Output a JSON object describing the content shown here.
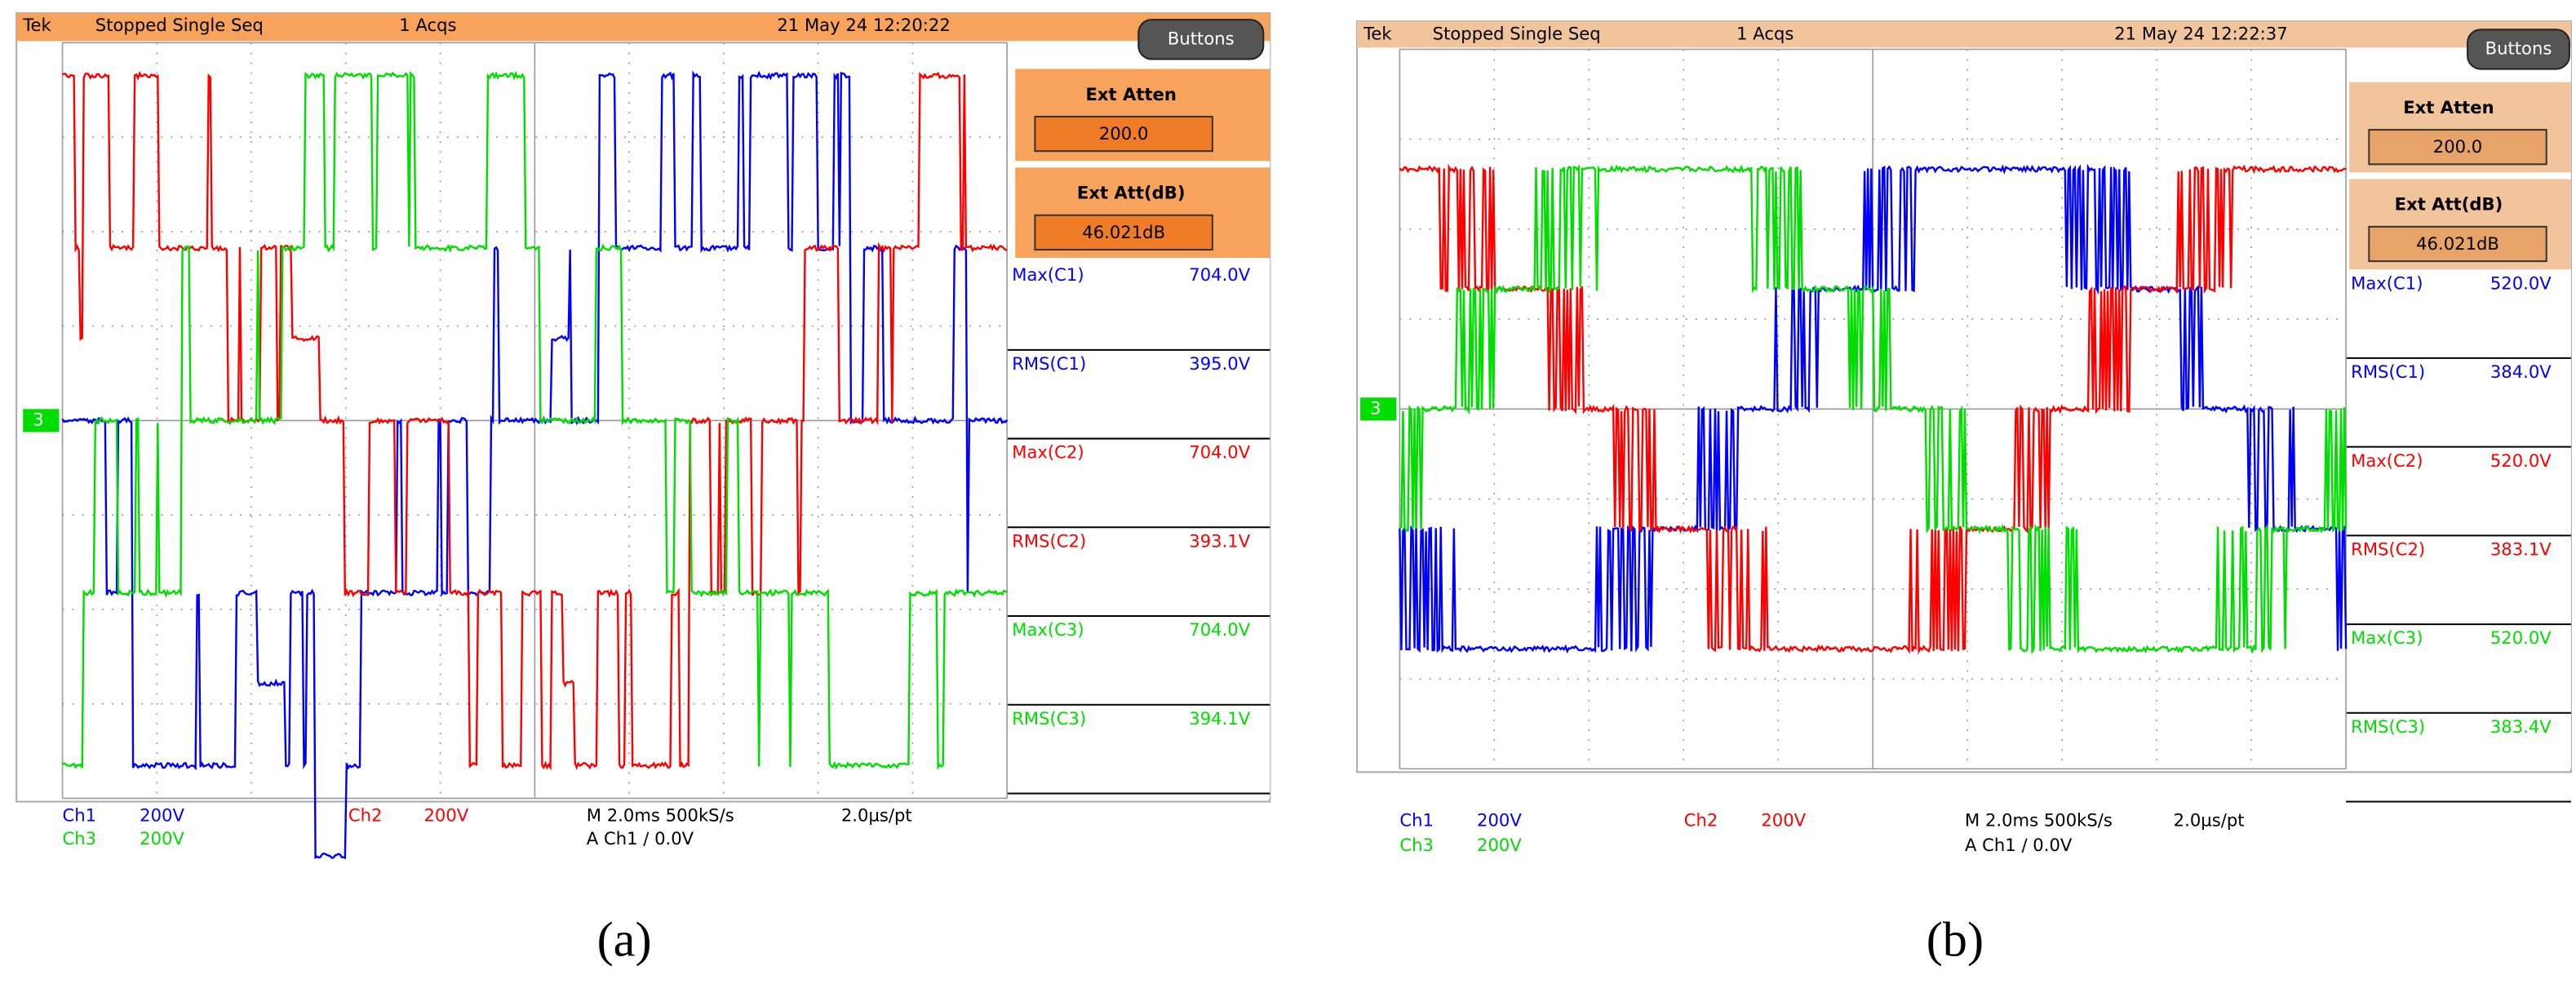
{
  "panels": [
    {
      "caption": "(a)",
      "header": {
        "brand": "Tek",
        "status": "Stopped  Single Seq",
        "acqs": "1 Acqs",
        "datetime": "21 May 24 12:20:22",
        "button": "Buttons"
      },
      "ext_atten": {
        "label": "Ext Atten",
        "value": "200.0"
      },
      "ext_att_db": {
        "label": "Ext Att(dB)",
        "value": "46.021dB"
      },
      "marker": "3",
      "measurements": [
        {
          "label": "Max(C1)",
          "value": "704.0V"
        },
        {
          "label": "RMS(C1)",
          "value": "395.0V"
        },
        {
          "label": "Max(C2)",
          "value": "704.0V"
        },
        {
          "label": "RMS(C2)",
          "value": "393.1V"
        },
        {
          "label": "Max(C3)",
          "value": "704.0V"
        },
        {
          "label": "RMS(C3)",
          "value": "394.1V"
        }
      ],
      "footer": {
        "ch1": "Ch1",
        "ch1_scale": "200V",
        "ch2": "Ch2",
        "ch2_scale": "200V",
        "ch3": "Ch3",
        "ch3_scale": "200V",
        "timebase": "M 2.0ms 500kS/s",
        "per_pt": "2.0µs/pt",
        "trigger": "A  Ch1  ∕  0.0V"
      }
    },
    {
      "caption": "(b)",
      "header": {
        "brand": "Tek",
        "status": "Stopped  Single Seq",
        "acqs": "1 Acqs",
        "datetime": "21 May 24 12:22:37",
        "button": "Buttons"
      },
      "ext_atten": {
        "label": "Ext Atten",
        "value": "200.0"
      },
      "ext_att_db": {
        "label": "Ext Att(dB)",
        "value": "46.021dB"
      },
      "marker": "3",
      "measurements": [
        {
          "label": "Max(C1)",
          "value": "520.0V"
        },
        {
          "label": "RMS(C1)",
          "value": "384.0V"
        },
        {
          "label": "Max(C2)",
          "value": "520.0V"
        },
        {
          "label": "RMS(C2)",
          "value": "383.1V"
        },
        {
          "label": "Max(C3)",
          "value": "520.0V"
        },
        {
          "label": "RMS(C3)",
          "value": "383.4V"
        }
      ],
      "footer": {
        "ch1": "Ch1",
        "ch1_scale": "200V",
        "ch2": "Ch2",
        "ch2_scale": "200V",
        "ch3": "Ch3",
        "ch3_scale": "200V",
        "timebase": "M 2.0ms 500kS/s",
        "per_pt": "2.0µs/pt",
        "trigger": "A  Ch1  ∕  0.0V"
      }
    }
  ]
}
